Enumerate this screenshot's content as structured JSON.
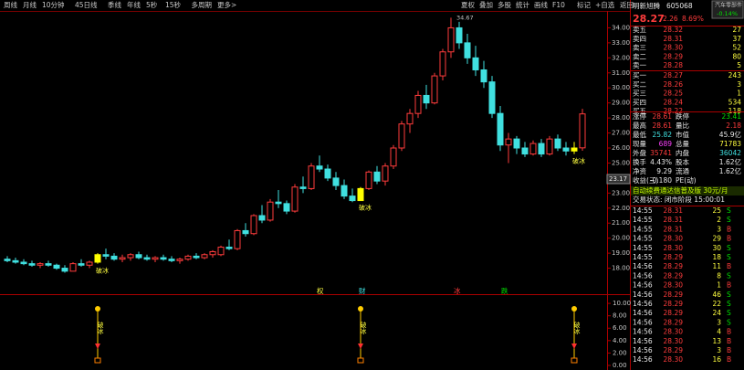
{
  "header": {
    "tabs": [
      "周线",
      "月线",
      "10分钟",
      "45日线",
      "季线",
      "年线",
      "5秒",
      "15秒",
      "多周期",
      "更多>"
    ],
    "tools": [
      "夏权",
      "叠加",
      "多股",
      "统计",
      "画线",
      "F10",
      "标记",
      "+自选",
      "返回"
    ]
  },
  "chart_data": {
    "type": "candlestick",
    "cursor_price": "23.17",
    "ylim": [
      17.0,
      35.0
    ],
    "yticks": [
      {
        "value": 34,
        "label": "34.00"
      },
      {
        "value": 33,
        "label": "33.00"
      },
      {
        "value": 32,
        "label": "32.00"
      },
      {
        "value": 31,
        "label": "31.00"
      },
      {
        "value": 30,
        "label": "30.00"
      },
      {
        "value": 29,
        "label": "29.00"
      },
      {
        "value": 28,
        "label": "28.00"
      },
      {
        "value": 27,
        "label": "27.00"
      },
      {
        "value": 26,
        "label": "26.00"
      },
      {
        "value": 25,
        "label": "25.00"
      },
      {
        "value": 24,
        "label": "24.00"
      },
      {
        "value": 23,
        "label": "23.00"
      },
      {
        "value": 22,
        "label": "22.00"
      },
      {
        "value": 21,
        "label": "21.00"
      },
      {
        "value": 20,
        "label": "20.00"
      },
      {
        "value": 19,
        "label": "19.00"
      },
      {
        "value": 18,
        "label": "18.00"
      }
    ],
    "up_color": "#ff3c3c",
    "down_color": "#40e0e0",
    "signal_color": "#ffff00",
    "ohlc": [
      [
        18.6,
        18.8,
        18.4,
        18.5
      ],
      [
        18.5,
        18.7,
        18.3,
        18.4
      ],
      [
        18.4,
        18.6,
        18.2,
        18.3
      ],
      [
        18.3,
        18.5,
        18.1,
        18.2
      ],
      [
        18.2,
        18.4,
        18.0,
        18.3
      ],
      [
        18.3,
        18.5,
        18.1,
        18.2
      ],
      [
        18.2,
        18.3,
        17.9,
        18.0
      ],
      [
        18.0,
        18.2,
        17.7,
        17.8
      ],
      [
        17.8,
        18.4,
        17.8,
        18.3
      ],
      [
        18.3,
        18.6,
        18.1,
        18.2
      ],
      [
        18.2,
        18.5,
        18.0,
        18.4
      ],
      [
        18.4,
        19.0,
        18.3,
        18.9
      ],
      [
        18.9,
        19.3,
        18.6,
        18.8
      ],
      [
        18.8,
        19.0,
        18.5,
        18.6
      ],
      [
        18.6,
        18.9,
        18.4,
        18.7
      ],
      [
        18.7,
        19.0,
        18.5,
        18.9
      ],
      [
        18.9,
        19.1,
        18.6,
        18.7
      ],
      [
        18.7,
        18.9,
        18.5,
        18.6
      ],
      [
        18.6,
        18.8,
        18.4,
        18.7
      ],
      [
        18.7,
        18.9,
        18.5,
        18.6
      ],
      [
        18.6,
        18.8,
        18.4,
        18.5
      ],
      [
        18.5,
        18.7,
        18.3,
        18.6
      ],
      [
        18.6,
        18.9,
        18.5,
        18.8
      ],
      [
        18.8,
        19.0,
        18.6,
        18.7
      ],
      [
        18.7,
        19.0,
        18.6,
        18.9
      ],
      [
        18.9,
        19.2,
        18.7,
        19.1
      ],
      [
        18.9,
        19.5,
        18.8,
        19.4
      ],
      [
        19.4,
        19.9,
        19.2,
        19.3
      ],
      [
        19.3,
        20.6,
        19.2,
        20.5
      ],
      [
        20.5,
        21.0,
        20.1,
        20.3
      ],
      [
        20.3,
        21.6,
        20.2,
        21.5
      ],
      [
        21.5,
        22.2,
        21.0,
        21.2
      ],
      [
        21.2,
        22.6,
        21.1,
        22.4
      ],
      [
        22.4,
        23.2,
        22.0,
        22.3
      ],
      [
        22.3,
        22.5,
        21.6,
        21.8
      ],
      [
        21.8,
        23.6,
        21.7,
        23.4
      ],
      [
        23.4,
        24.1,
        23.0,
        23.3
      ],
      [
        23.3,
        25.0,
        23.2,
        24.8
      ],
      [
        24.8,
        25.5,
        24.4,
        24.6
      ],
      [
        24.6,
        24.9,
        23.8,
        24.0
      ],
      [
        24.0,
        24.4,
        23.2,
        23.5
      ],
      [
        23.5,
        23.9,
        22.6,
        22.8
      ],
      [
        22.8,
        23.3,
        22.4,
        22.5
      ],
      [
        22.5,
        23.4,
        22.5,
        23.3
      ],
      [
        23.3,
        24.5,
        23.2,
        24.4
      ],
      [
        24.4,
        24.8,
        23.6,
        23.8
      ],
      [
        23.8,
        25.0,
        23.5,
        24.8
      ],
      [
        24.8,
        26.2,
        24.6,
        26.0
      ],
      [
        26.0,
        27.8,
        25.8,
        27.6
      ],
      [
        27.6,
        28.6,
        27.0,
        28.3
      ],
      [
        28.3,
        29.8,
        28.0,
        29.5
      ],
      [
        29.5,
        30.2,
        28.6,
        29.0
      ],
      [
        29.0,
        31.0,
        28.9,
        30.8
      ],
      [
        30.8,
        32.6,
        30.5,
        32.4
      ],
      [
        32.4,
        34.67,
        32.0,
        34.0
      ],
      [
        34.0,
        34.4,
        32.6,
        33.0
      ],
      [
        33.0,
        33.6,
        31.6,
        32.0
      ],
      [
        32.0,
        32.8,
        30.8,
        31.2
      ],
      [
        31.2,
        31.8,
        30.0,
        30.4
      ],
      [
        30.4,
        30.8,
        28.0,
        28.3
      ],
      [
        28.3,
        28.8,
        25.8,
        26.2
      ],
      [
        26.2,
        27.0,
        25.0,
        26.6
      ],
      [
        26.6,
        26.8,
        25.6,
        26.0
      ],
      [
        26.0,
        26.4,
        25.4,
        25.6
      ],
      [
        25.6,
        26.5,
        25.5,
        26.3
      ],
      [
        26.3,
        26.6,
        25.4,
        25.6
      ],
      [
        25.6,
        26.8,
        25.5,
        26.6
      ],
      [
        26.6,
        26.9,
        25.8,
        26.0
      ],
      [
        26.0,
        26.4,
        25.5,
        25.8
      ],
      [
        25.8,
        26.4,
        25.6,
        26.0
      ],
      [
        26.01,
        28.61,
        25.82,
        28.27
      ]
    ],
    "signals": [
      {
        "index": 11,
        "label": "破冰"
      },
      {
        "index": 43,
        "label": "破冰"
      },
      {
        "index": 69,
        "label": "破冰"
      }
    ],
    "events": [
      "权",
      "财",
      "冰",
      "跌"
    ],
    "indicator_ylim": [
      0,
      10.6
    ],
    "indicator_ticks": [
      {
        "value": 10,
        "label": "10.00"
      },
      {
        "value": 8,
        "label": "8.00"
      },
      {
        "value": 6,
        "label": "6.00"
      },
      {
        "value": 4,
        "label": "4.00"
      },
      {
        "value": 2,
        "label": "2.00"
      },
      {
        "value": 0,
        "label": "0.00"
      }
    ]
  },
  "quote": {
    "name": "明新旭腾",
    "code": "605068",
    "sector": "汽车零部件",
    "sector_pct": "-0.14%",
    "price": "28.27",
    "change": "2.26",
    "pct": "8.69%"
  },
  "book": [
    [
      "卖五",
      "28.32",
      "27"
    ],
    [
      "卖四",
      "28.31",
      "37"
    ],
    [
      "卖三",
      "28.30",
      "52"
    ],
    [
      "卖二",
      "28.29",
      "80"
    ],
    [
      "卖一",
      "28.28",
      "5"
    ],
    [
      "买一",
      "28.27",
      "243"
    ],
    [
      "买二",
      "28.26",
      "3"
    ],
    [
      "买三",
      "28.25",
      "1"
    ],
    [
      "买四",
      "28.24",
      "534"
    ],
    [
      "买五",
      "28.22",
      "118"
    ]
  ],
  "stats": [
    [
      "涨停",
      "28.61",
      "跌停",
      "23.41"
    ],
    [
      "最高",
      "28.61",
      "量比",
      "2.18"
    ],
    [
      "最低",
      "25.82",
      "市值",
      "45.9亿"
    ],
    [
      "现量",
      "689",
      "总量",
      "71783"
    ],
    [
      "外盘",
      "35741",
      "内盘",
      "36042"
    ],
    [
      "换手",
      "4.43%",
      "股本",
      "1.62亿"
    ],
    [
      "净资",
      "9.29",
      "流通",
      "1.62亿"
    ],
    [
      "收益(三)",
      "-0.180",
      "PE(动)",
      ""
    ]
  ],
  "banner": "自动续费通达信普及版 30元/月",
  "status": "交易状态: 闭市阶段 15:00:01",
  "trades": [
    [
      "14:55",
      "28.31",
      "25",
      "S"
    ],
    [
      "14:55",
      "28.31",
      "2",
      "S"
    ],
    [
      "14:55",
      "28.31",
      "3",
      "B"
    ],
    [
      "14:55",
      "28.30",
      "29",
      "B"
    ],
    [
      "14:55",
      "28.30",
      "30",
      "S"
    ],
    [
      "14:55",
      "28.29",
      "18",
      "S"
    ],
    [
      "14:56",
      "28.29",
      "11",
      "B"
    ],
    [
      "14:56",
      "28.29",
      "8",
      "S"
    ],
    [
      "14:56",
      "28.30",
      "1",
      "B"
    ],
    [
      "14:56",
      "28.29",
      "46",
      "S"
    ],
    [
      "14:56",
      "28.29",
      "22",
      "S"
    ],
    [
      "14:56",
      "28.29",
      "24",
      "S"
    ],
    [
      "14:56",
      "28.29",
      "3",
      "S"
    ],
    [
      "14:56",
      "28.30",
      "4",
      "B"
    ],
    [
      "14:56",
      "28.30",
      "13",
      "B"
    ],
    [
      "14:56",
      "28.29",
      "3",
      "B"
    ],
    [
      "14:56",
      "28.30",
      "16",
      "B"
    ]
  ]
}
